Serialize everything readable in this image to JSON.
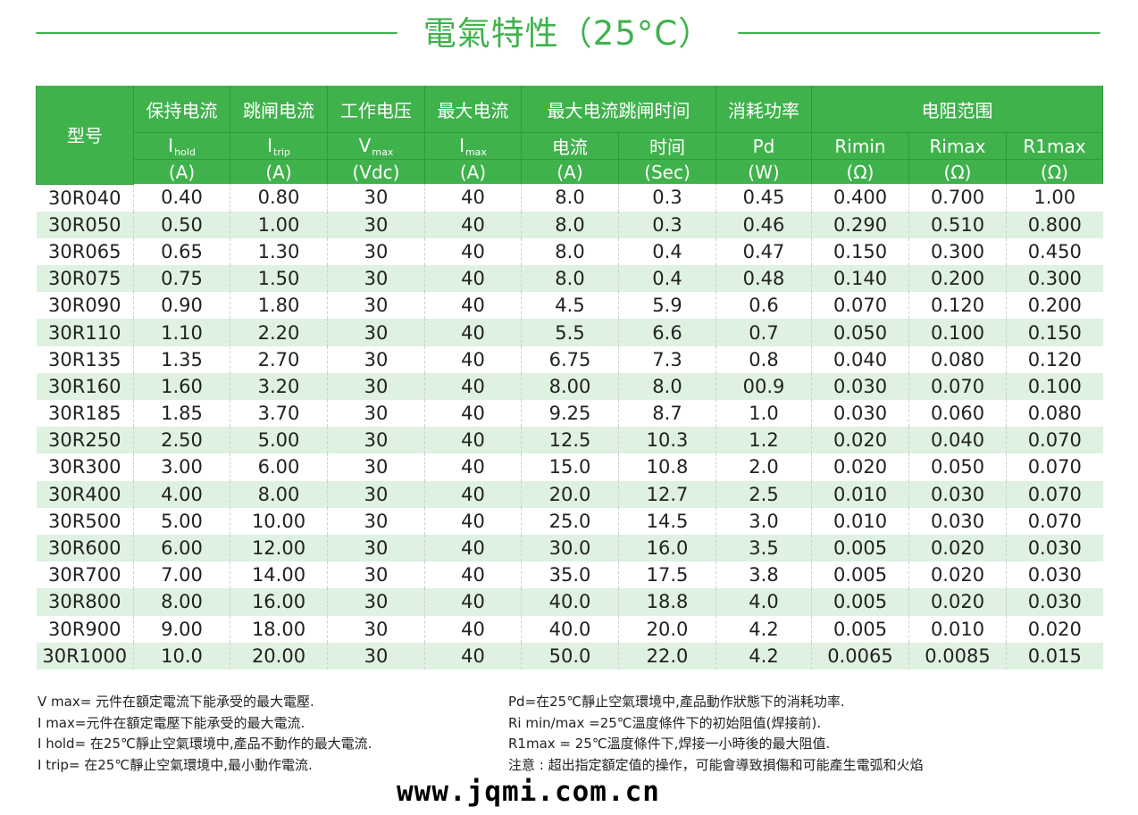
{
  "title": "電氣特性（25°C）",
  "header": {
    "model": "型号",
    "groups": [
      "保持电流",
      "跳闸电流",
      "工作电压",
      "最大电流",
      "最大电流跳闸时间",
      "消耗功率",
      "电阻范围"
    ],
    "symbols": [
      {
        "main": "I",
        "sub": "hold"
      },
      {
        "main": "I",
        "sub": "trip"
      },
      {
        "main": "V",
        "sub": "max"
      },
      {
        "main": "I",
        "sub": "max"
      },
      {
        "main": "电流",
        "sub": ""
      },
      {
        "main": "时间",
        "sub": ""
      },
      {
        "main": "Pd",
        "sub": ""
      },
      {
        "main": "Rimin",
        "sub": ""
      },
      {
        "main": "Rimax",
        "sub": ""
      },
      {
        "main": "R1max",
        "sub": ""
      }
    ],
    "units": [
      "(A)",
      "(A)",
      "(Vdc)",
      "(A)",
      "(A)",
      "(Sec)",
      "(W)",
      "(Ω)",
      "(Ω)",
      "(Ω)"
    ]
  },
  "rows": [
    [
      "30R040",
      "0.40",
      "0.80",
      "30",
      "40",
      "8.0",
      "0.3",
      "0.45",
      "0.400",
      "0.700",
      "1.00"
    ],
    [
      "30R050",
      "0.50",
      "1.00",
      "30",
      "40",
      "8.0",
      "0.3",
      "0.46",
      "0.290",
      "0.510",
      "0.800"
    ],
    [
      "30R065",
      "0.65",
      "1.30",
      "30",
      "40",
      "8.0",
      "0.4",
      "0.47",
      "0.150",
      "0.300",
      "0.450"
    ],
    [
      "30R075",
      "0.75",
      "1.50",
      "30",
      "40",
      "8.0",
      "0.4",
      "0.48",
      "0.140",
      "0.200",
      "0.300"
    ],
    [
      "30R090",
      "0.90",
      "1.80",
      "30",
      "40",
      "4.5",
      "5.9",
      "0.6",
      "0.070",
      "0.120",
      "0.200"
    ],
    [
      "30R110",
      "1.10",
      "2.20",
      "30",
      "40",
      "5.5",
      "6.6",
      "0.7",
      "0.050",
      "0.100",
      "0.150"
    ],
    [
      "30R135",
      "1.35",
      "2.70",
      "30",
      "40",
      "6.75",
      "7.3",
      "0.8",
      "0.040",
      "0.080",
      "0.120"
    ],
    [
      "30R160",
      "1.60",
      "3.20",
      "30",
      "40",
      "8.00",
      "8.0",
      "00.9",
      "0.030",
      "0.070",
      "0.100"
    ],
    [
      "30R185",
      "1.85",
      "3.70",
      "30",
      "40",
      "9.25",
      "8.7",
      "1.0",
      "0.030",
      "0.060",
      "0.080"
    ],
    [
      "30R250",
      "2.50",
      "5.00",
      "30",
      "40",
      "12.5",
      "10.3",
      "1.2",
      "0.020",
      "0.040",
      "0.070"
    ],
    [
      "30R300",
      "3.00",
      "6.00",
      "30",
      "40",
      "15.0",
      "10.8",
      "2.0",
      "0.020",
      "0.050",
      "0.070"
    ],
    [
      "30R400",
      "4.00",
      "8.00",
      "30",
      "40",
      "20.0",
      "12.7",
      "2.5",
      "0.010",
      "0.030",
      "0.070"
    ],
    [
      "30R500",
      "5.00",
      "10.00",
      "30",
      "40",
      "25.0",
      "14.5",
      "3.0",
      "0.010",
      "0.030",
      "0.070"
    ],
    [
      "30R600",
      "6.00",
      "12.00",
      "30",
      "40",
      "30.0",
      "16.0",
      "3.5",
      "0.005",
      "0.020",
      "0.030"
    ],
    [
      "30R700",
      "7.00",
      "14.00",
      "30",
      "40",
      "35.0",
      "17.5",
      "3.8",
      "0.005",
      "0.020",
      "0.030"
    ],
    [
      "30R800",
      "8.00",
      "16.00",
      "30",
      "40",
      "40.0",
      "18.8",
      "4.0",
      "0.005",
      "0.020",
      "0.030"
    ],
    [
      "30R900",
      "9.00",
      "18.00",
      "30",
      "40",
      "40.0",
      "20.0",
      "4.2",
      "0.005",
      "0.010",
      "0.020"
    ],
    [
      "30R1000",
      "10.0",
      "20.00",
      "30",
      "40",
      "50.0",
      "22.0",
      "4.2",
      "0.0065",
      "0.0085",
      "0.015"
    ]
  ],
  "notes_left": [
    "V max= 元件在額定電流下能承受的最大電壓.",
    "I max=元件在額定電壓下能承受的最大電流.",
    "I hold= 在25℃靜止空氣環境中,產品不動作的最大電流.",
    "I trip= 在25℃靜止空氣環境中,最小動作電流."
  ],
  "notes_right": [
    "Pd=在25℃靜止空氣環境中,產品動作狀態下的消耗功率.",
    "Ri min/max  =25℃溫度條件下的初始阻值(焊接前).",
    "R1max  = 25℃溫度條件下,焊接一小時後的最大阻值.",
    "注意 : 超出指定額定值的操作，可能會導致損傷和可能產生電弧和火焰"
  ],
  "website": "www.jqmi.com.cn",
  "colors": {
    "accent": "#3fb24c",
    "row_alt": "#dff1e1"
  }
}
